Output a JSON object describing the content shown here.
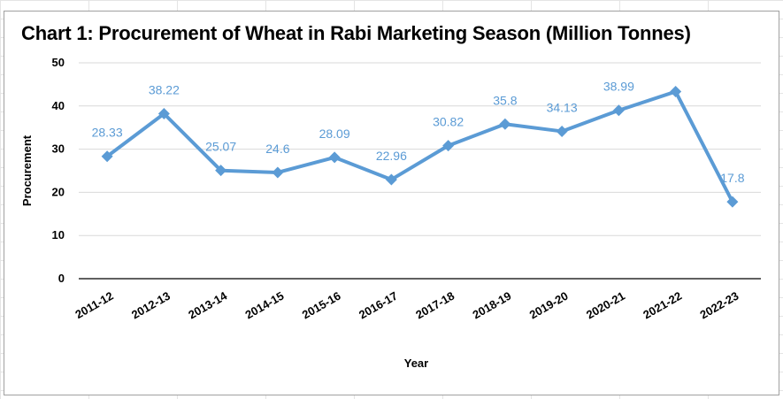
{
  "chart_data": {
    "type": "line",
    "title": "Chart 1: Procurement of Wheat in Rabi Marketing Season (Million Tonnes)",
    "xlabel": "Year",
    "ylabel": "Procurement",
    "categories": [
      "2011-12",
      "2012-13",
      "2013-14",
      "2014-15",
      "2015-16",
      "2016-17",
      "2017-18",
      "2018-19",
      "2019-20",
      "2020-21",
      "2021-22",
      "2022-23"
    ],
    "series": [
      {
        "values": [
          28.33,
          38.22,
          25.07,
          24.6,
          28.09,
          22.96,
          30.82,
          35.8,
          34.13,
          38.99,
          43.34,
          17.8
        ],
        "data_labels": [
          "28.33",
          "38.22",
          "25.07",
          "24.6",
          "28.09",
          "22.96",
          "30.82",
          "35.8",
          "34.13",
          "38.99",
          "",
          "17.8"
        ]
      }
    ],
    "ylim": [
      0,
      50
    ],
    "yticks": [
      "0",
      "10",
      "20",
      "30",
      "40",
      "50"
    ],
    "grid": true,
    "legend": "none",
    "colors": {
      "line": "#5b9bd5",
      "label": "#5b9bd5",
      "grid": "#d9d9d9"
    }
  }
}
